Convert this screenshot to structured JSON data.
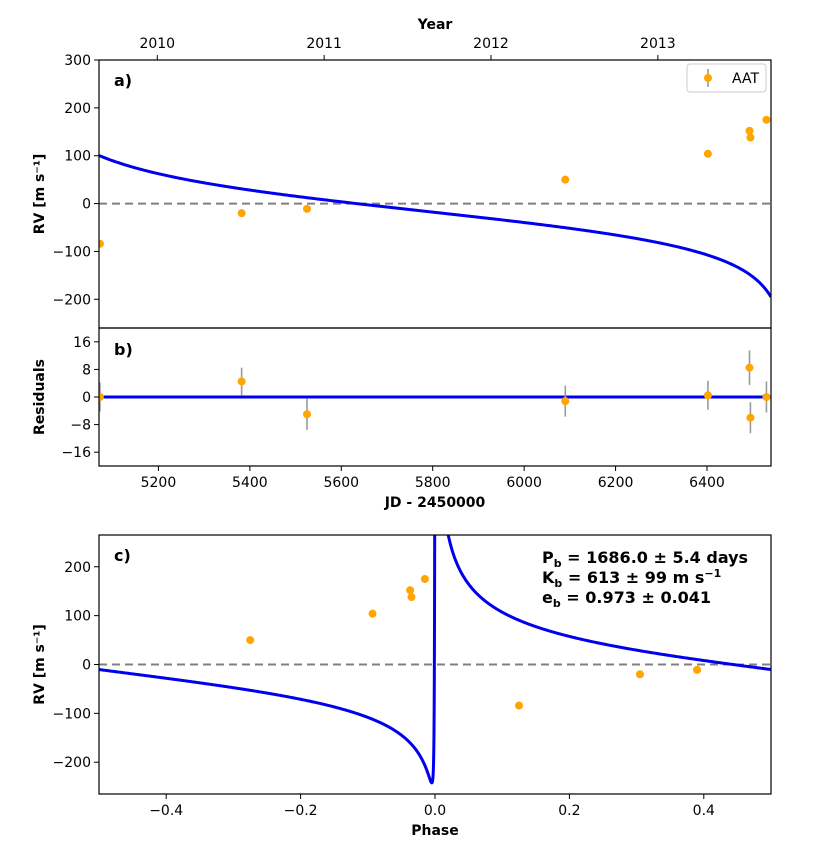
{
  "chart_data": [
    {
      "type": "scatter",
      "panel_label": "a)",
      "top_axis_title": "Year",
      "top_ticks": [
        "2010",
        "2011",
        "2012",
        "2013"
      ],
      "top_tick_jd": [
        5197.5,
        5562.5,
        5927.5,
        6292.5
      ],
      "ylabel": "RV [m s⁻¹]",
      "xlim": [
        5070,
        6540
      ],
      "ylim": [
        -260,
        300
      ],
      "yticks": [
        -200,
        -100,
        0,
        100,
        200,
        300
      ],
      "legend": {
        "label": "AAT",
        "placement": "top-right"
      },
      "series": [
        {
          "name": "AAT",
          "x": [
            5072,
            5382,
            5525,
            6090,
            6402,
            6493,
            6495,
            6530
          ],
          "y": [
            -84,
            -20,
            -11,
            50,
            104,
            152,
            138,
            175
          ]
        }
      ],
      "model_curve": "Keplerian fit",
      "zero_line": true
    },
    {
      "type": "scatter",
      "panel_label": "b)",
      "ylabel": "Residuals",
      "xlabel": "JD - 2450000",
      "xlim": [
        5070,
        6540
      ],
      "ylim": [
        -20,
        20
      ],
      "xticks": [
        5200,
        5400,
        5600,
        5800,
        6000,
        6200,
        6400
      ],
      "yticks": [
        -16,
        -8,
        0,
        8,
        16
      ],
      "series": [
        {
          "name": "AAT",
          "x": [
            5072,
            5382,
            5525,
            6090,
            6402,
            6493,
            6495,
            6530
          ],
          "y": [
            0,
            4.5,
            -5,
            -1.2,
            0.5,
            8.5,
            -6,
            0
          ],
          "err": [
            4.2,
            4,
            4.5,
            4.5,
            4.2,
            5,
            4.5,
            4.5
          ]
        }
      ],
      "zero_line": true
    },
    {
      "type": "scatter",
      "panel_label": "c)",
      "ylabel": "RV [m s⁻¹]",
      "xlabel": "Phase",
      "xlim": [
        -0.5,
        0.5
      ],
      "ylim": [
        -265,
        265
      ],
      "xticks": [
        -0.4,
        -0.2,
        0.0,
        0.2,
        0.4
      ],
      "yticks": [
        -200,
        -100,
        0,
        100,
        200
      ],
      "series": [
        {
          "name": "AAT",
          "x": [
            -0.275,
            -0.093,
            -0.037,
            -0.035,
            -0.015,
            0.125,
            0.305,
            0.39
          ],
          "y": [
            50,
            104,
            152,
            138,
            175,
            -84,
            -20,
            -11
          ]
        }
      ],
      "annotations": [
        {
          "sym": "P",
          "sub": "b",
          "rest": " = 1686.0 ± 5.4 days",
          "sup": "",
          "tail": ""
        },
        {
          "sym": "K",
          "sub": "b",
          "rest": " = 613 ± 99 m s",
          "sup": "−1",
          "tail": ""
        },
        {
          "sym": "e",
          "sub": "b",
          "rest": " = 0.973 ± 0.041",
          "sup": "",
          "tail": ""
        }
      ],
      "zero_line": true
    }
  ],
  "colors": {
    "model": "#0000ee",
    "points": "#ffa500",
    "errorbar": "#9a9a9a",
    "zero": "#808080"
  }
}
